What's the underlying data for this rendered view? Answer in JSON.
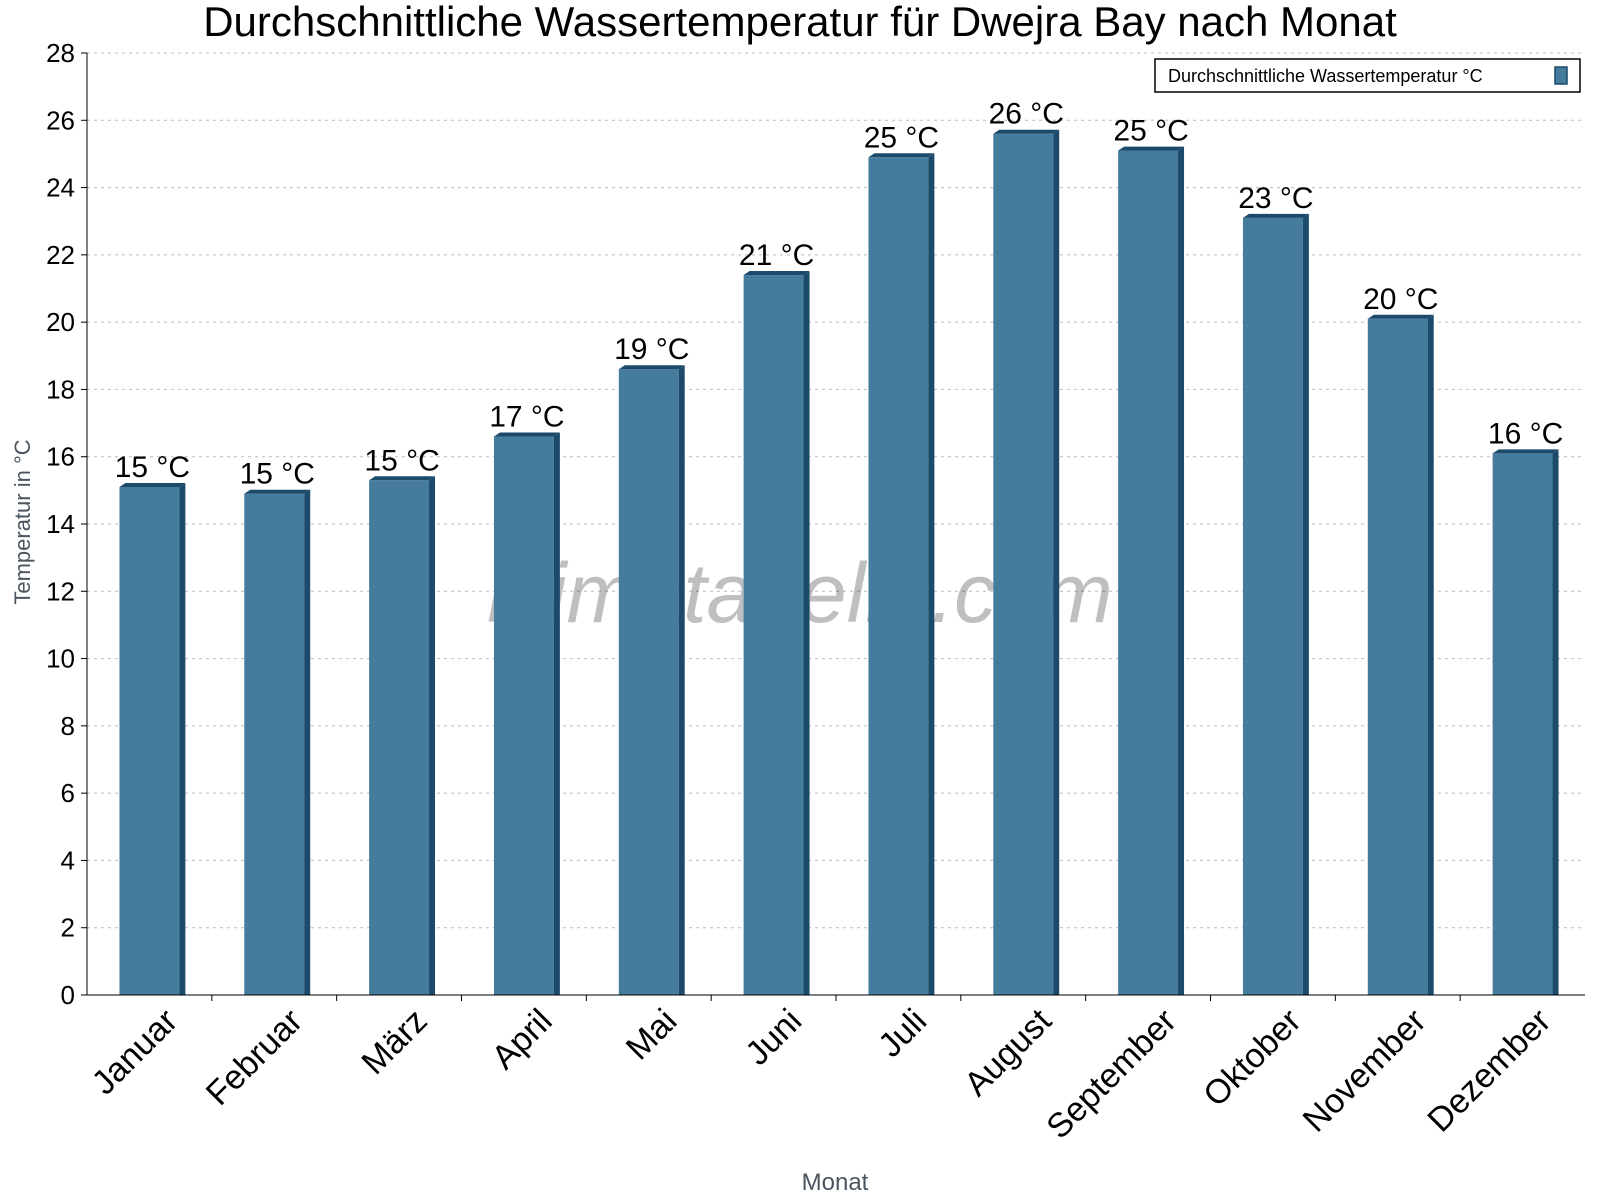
{
  "chart_data": {
    "type": "bar",
    "title": "Durchschnittliche Wassertemperatur für Dwejra Bay nach Monat",
    "xlabel": "Monat",
    "ylabel": "Temperatur in °C",
    "ylim": [
      0,
      28
    ],
    "yticks": [
      0,
      2,
      4,
      6,
      8,
      10,
      12,
      14,
      16,
      18,
      20,
      22,
      24,
      26,
      28
    ],
    "grid": true,
    "legend_position": "top-right",
    "categories": [
      "Januar",
      "Februar",
      "März",
      "April",
      "Mai",
      "Juni",
      "Juli",
      "August",
      "September",
      "Oktober",
      "November",
      "Dezember"
    ],
    "series": [
      {
        "name": "Durchschnittliche Wassertemperatur °C",
        "color": "#457b9d",
        "values": [
          15.1,
          14.9,
          15.3,
          16.6,
          18.6,
          21.4,
          24.9,
          25.6,
          25.1,
          23.1,
          20.1,
          16.1
        ],
        "labels": [
          "15 °C",
          "15 °C",
          "15 °C",
          "17 °C",
          "19 °C",
          "21 °C",
          "25 °C",
          "26 °C",
          "25 °C",
          "23 °C",
          "20 °C",
          "16 °C"
        ]
      }
    ],
    "watermark": "klimatabelle.com"
  }
}
